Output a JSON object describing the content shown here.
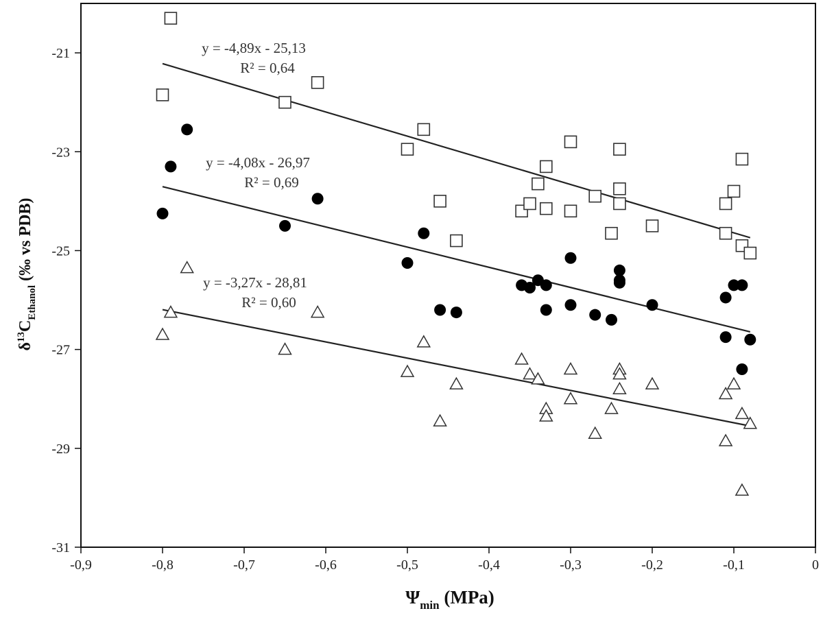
{
  "chart_data": {
    "type": "scatter",
    "xlabel": {
      "main": "Ψ",
      "sub": "min",
      "rest": " (MPa)"
    },
    "ylabel": {
      "main": "δ",
      "sup": "13",
      "c": "C",
      "sub": "Ethanol",
      "rest": " (‰ vs PDB)"
    },
    "xlim": [
      -0.9,
      0
    ],
    "ylim": [
      -31,
      -20
    ],
    "x_ticks": [
      "-0,9",
      "-0,8",
      "-0,7",
      "-0,6",
      "-0,5",
      "-0,4",
      "-0,3",
      "-0,2",
      "-0,1",
      "0"
    ],
    "x_tick_values": [
      -0.9,
      -0.8,
      -0.7,
      -0.6,
      -0.5,
      -0.4,
      -0.3,
      -0.2,
      -0.1,
      0
    ],
    "y_ticks": [
      "-21",
      "-23",
      "-25",
      "-27",
      "-29",
      "-31"
    ],
    "y_tick_values": [
      -21,
      -23,
      -25,
      -27,
      -29,
      -31
    ],
    "grid": false,
    "legend": "none",
    "series": [
      {
        "marker": "square",
        "points": [
          [
            -0.79,
            -20.3
          ],
          [
            -0.8,
            -21.85
          ],
          [
            -0.65,
            -22.0
          ],
          [
            -0.61,
            -21.6
          ],
          [
            -0.5,
            -22.95
          ],
          [
            -0.48,
            -22.55
          ],
          [
            -0.46,
            -24.0
          ],
          [
            -0.44,
            -24.8
          ],
          [
            -0.36,
            -24.2
          ],
          [
            -0.35,
            -24.05
          ],
          [
            -0.34,
            -23.65
          ],
          [
            -0.33,
            -23.3
          ],
          [
            -0.33,
            -24.15
          ],
          [
            -0.3,
            -22.8
          ],
          [
            -0.3,
            -24.2
          ],
          [
            -0.27,
            -23.9
          ],
          [
            -0.25,
            -24.65
          ],
          [
            -0.24,
            -22.95
          ],
          [
            -0.24,
            -23.75
          ],
          [
            -0.24,
            -24.05
          ],
          [
            -0.2,
            -24.5
          ],
          [
            -0.11,
            -24.05
          ],
          [
            -0.11,
            -24.65
          ],
          [
            -0.1,
            -23.8
          ],
          [
            -0.09,
            -23.15
          ],
          [
            -0.09,
            -24.9
          ],
          [
            -0.08,
            -25.05
          ]
        ],
        "trend": {
          "slope": -4.89,
          "intercept": -25.13,
          "x_range": [
            -0.8,
            -0.08
          ]
        },
        "equation": "y = -4,89x - 25,13",
        "r2": "R² = 0,64"
      },
      {
        "marker": "circle",
        "points": [
          [
            -0.77,
            -22.55
          ],
          [
            -0.79,
            -23.3
          ],
          [
            -0.8,
            -24.25
          ],
          [
            -0.65,
            -24.5
          ],
          [
            -0.61,
            -23.95
          ],
          [
            -0.5,
            -25.25
          ],
          [
            -0.48,
            -24.65
          ],
          [
            -0.46,
            -26.2
          ],
          [
            -0.44,
            -26.25
          ],
          [
            -0.36,
            -25.7
          ],
          [
            -0.35,
            -25.75
          ],
          [
            -0.34,
            -25.6
          ],
          [
            -0.33,
            -25.7
          ],
          [
            -0.33,
            -26.2
          ],
          [
            -0.3,
            -25.15
          ],
          [
            -0.3,
            -26.1
          ],
          [
            -0.27,
            -26.3
          ],
          [
            -0.25,
            -26.4
          ],
          [
            -0.24,
            -25.4
          ],
          [
            -0.24,
            -25.65
          ],
          [
            -0.24,
            -25.6
          ],
          [
            -0.2,
            -26.1
          ],
          [
            -0.11,
            -25.95
          ],
          [
            -0.11,
            -26.75
          ],
          [
            -0.1,
            -25.7
          ],
          [
            -0.09,
            -25.7
          ],
          [
            -0.09,
            -27.4
          ],
          [
            -0.08,
            -26.8
          ]
        ],
        "trend": {
          "slope": -4.08,
          "intercept": -26.97,
          "x_range": [
            -0.8,
            -0.08
          ]
        },
        "equation": "y = -4,08x - 26,97",
        "r2": "R² = 0,69"
      },
      {
        "marker": "triangle",
        "points": [
          [
            -0.77,
            -25.35
          ],
          [
            -0.79,
            -26.25
          ],
          [
            -0.8,
            -26.7
          ],
          [
            -0.65,
            -27.0
          ],
          [
            -0.61,
            -26.25
          ],
          [
            -0.5,
            -27.45
          ],
          [
            -0.48,
            -26.85
          ],
          [
            -0.46,
            -28.45
          ],
          [
            -0.44,
            -27.7
          ],
          [
            -0.36,
            -27.2
          ],
          [
            -0.35,
            -27.5
          ],
          [
            -0.34,
            -27.6
          ],
          [
            -0.33,
            -28.2
          ],
          [
            -0.33,
            -28.35
          ],
          [
            -0.3,
            -27.4
          ],
          [
            -0.3,
            -28.0
          ],
          [
            -0.27,
            -28.7
          ],
          [
            -0.25,
            -28.2
          ],
          [
            -0.24,
            -27.4
          ],
          [
            -0.24,
            -27.5
          ],
          [
            -0.24,
            -27.8
          ],
          [
            -0.2,
            -27.7
          ],
          [
            -0.11,
            -27.9
          ],
          [
            -0.11,
            -28.85
          ],
          [
            -0.1,
            -27.7
          ],
          [
            -0.09,
            -28.3
          ],
          [
            -0.09,
            -29.85
          ],
          [
            -0.08,
            -28.5
          ]
        ],
        "trend": {
          "slope": -3.27,
          "intercept": -28.81,
          "x_range": [
            -0.8,
            -0.08
          ]
        },
        "equation": "y = -3,27x - 28,81",
        "r2": "R² = 0,60"
      }
    ]
  }
}
